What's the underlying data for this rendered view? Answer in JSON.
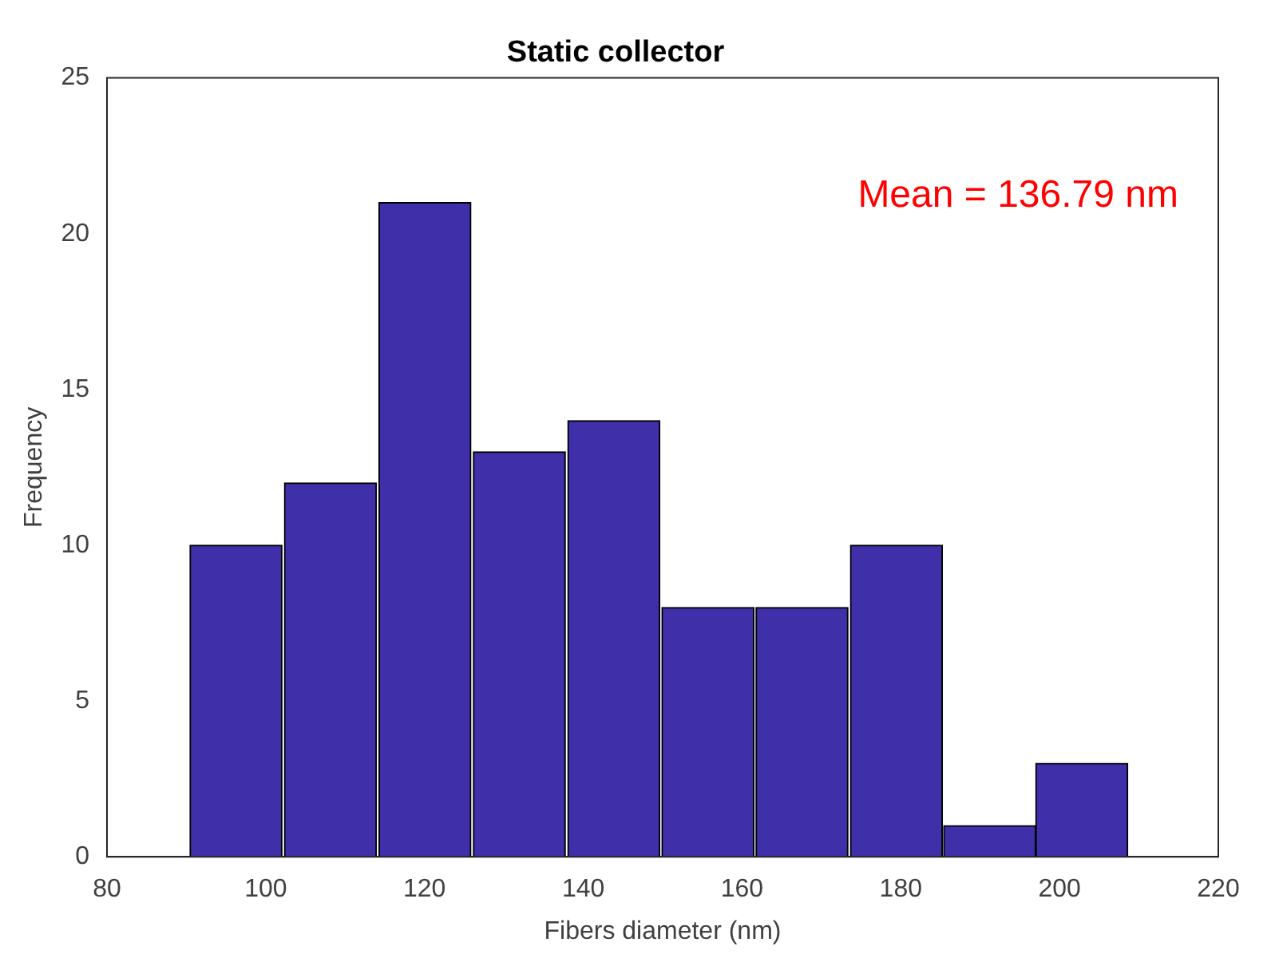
{
  "chart_data": {
    "type": "histogram",
    "title": "Static collector",
    "xlabel": "Fibers diameter (nm)",
    "ylabel": "Frequency",
    "bins": [
      90.3,
      102.2,
      114.1,
      126.0,
      137.9,
      149.8,
      161.6,
      173.5,
      185.4,
      197.0,
      208.6
    ],
    "values": [
      10,
      12,
      21,
      13,
      14,
      8,
      8,
      10,
      1,
      3
    ],
    "color": "#3f2fa8",
    "xlim": [
      80,
      220
    ],
    "xticks": [
      80,
      100,
      120,
      140,
      160,
      180,
      200,
      220
    ],
    "ylim": [
      0,
      25
    ],
    "yticks": [
      0,
      5,
      10,
      15,
      20,
      25
    ],
    "grid": false,
    "legend": false,
    "annotations": [
      "Mean = 136.79 nm"
    ]
  }
}
